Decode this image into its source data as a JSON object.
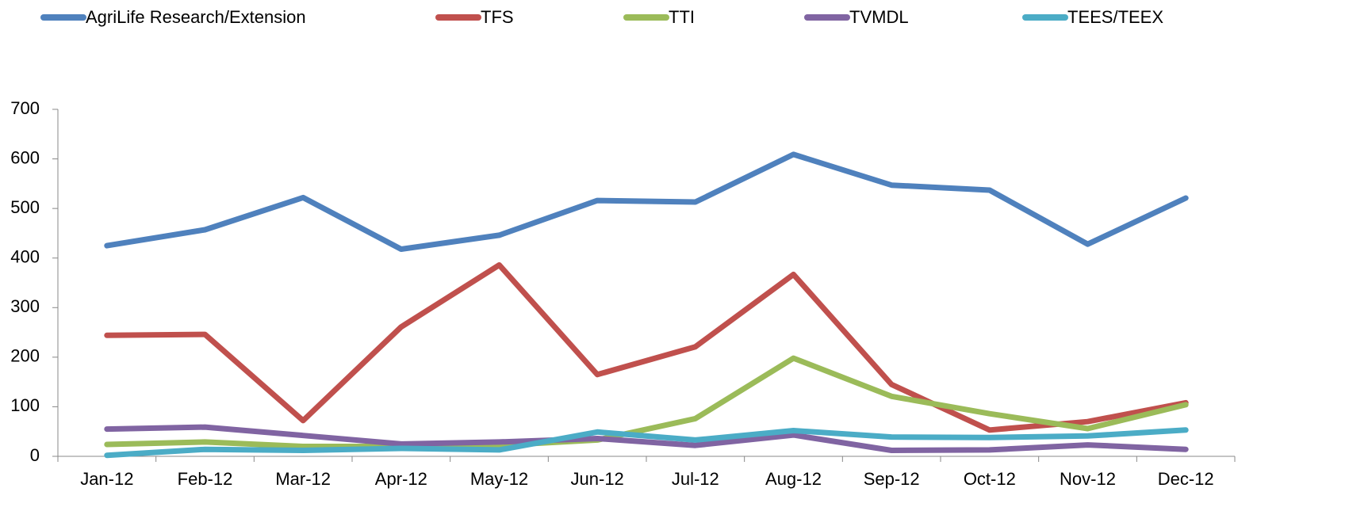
{
  "chart_data": {
    "type": "line",
    "categories": [
      "Jan-12",
      "Feb-12",
      "Mar-12",
      "Apr-12",
      "May-12",
      "Jun-12",
      "Jul-12",
      "Aug-12",
      "Sep-12",
      "Oct-12",
      "Nov-12",
      "Dec-12"
    ],
    "series": [
      {
        "name": "AgriLife Research/Extension",
        "color": "#4f81bd",
        "values": [
          425,
          457,
          522,
          418,
          446,
          516,
          513,
          609,
          547,
          537,
          428,
          521
        ]
      },
      {
        "name": "TFS",
        "color": "#c0504d",
        "values": [
          244,
          246,
          72,
          261,
          386,
          165,
          221,
          367,
          145,
          53,
          70,
          108
        ]
      },
      {
        "name": "TTI",
        "color": "#9bbb59",
        "values": [
          24,
          29,
          20,
          20,
          22,
          33,
          76,
          198,
          121,
          86,
          56,
          104
        ]
      },
      {
        "name": "TVMDL",
        "color": "#8064a2",
        "values": [
          55,
          59,
          42,
          25,
          29,
          36,
          22,
          43,
          12,
          13,
          23,
          14
        ]
      },
      {
        "name": "TEES/TEEX",
        "color": "#4bacc6",
        "values": [
          2,
          14,
          12,
          16,
          13,
          49,
          33,
          52,
          39,
          38,
          41,
          53
        ]
      }
    ],
    "ylim": [
      0,
      700
    ],
    "yticks": [
      0,
      100,
      200,
      300,
      400,
      500,
      600,
      700
    ],
    "grid": false,
    "legend": "top"
  }
}
